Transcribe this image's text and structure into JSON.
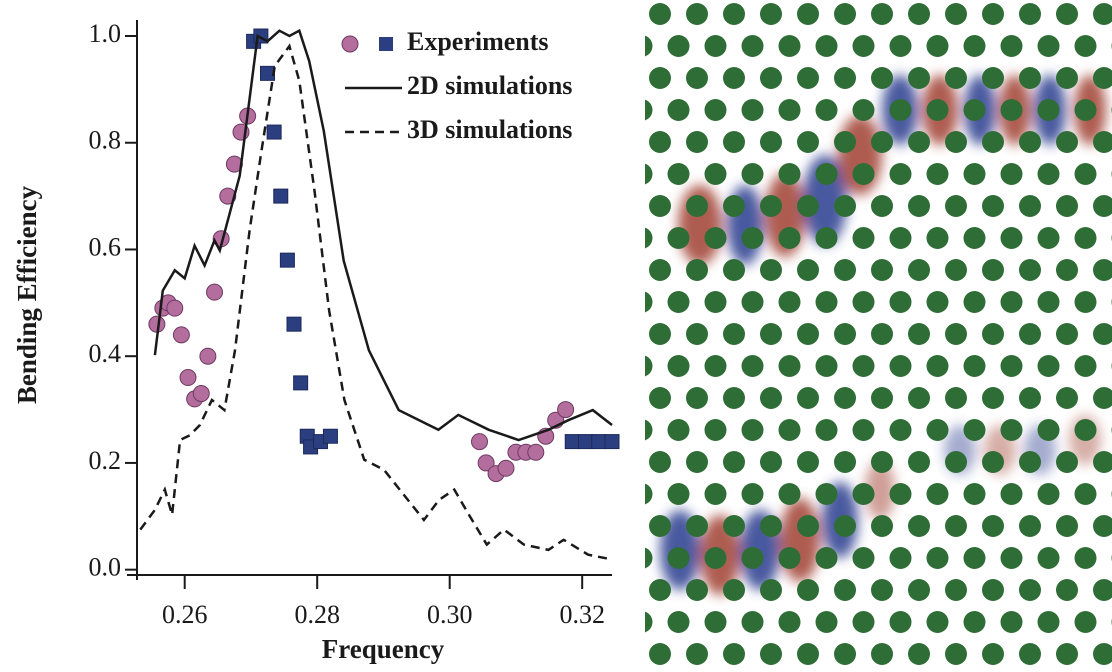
{
  "chart_data": {
    "type": "line",
    "x_label": "Frequency",
    "y_label": "Bending Efficiency",
    "xlim": [
      0.2528,
      0.3245
    ],
    "ylim": [
      -0.01,
      1.03
    ],
    "xticks": [
      0.26,
      0.28,
      {
        "value": 0.3,
        "label": "0.30"
      },
      0.32
    ],
    "yticks": [
      {
        "value": 0,
        "label": "0.0"
      },
      0.2,
      0.4,
      0.6,
      0.8,
      {
        "value": 1,
        "label": "1.0"
      }
    ],
    "series": [
      {
        "name": "Experiments",
        "color": "#b46e9e",
        "marker": "circle",
        "x": [
          0.2558,
          0.2567,
          0.2575,
          0.2585,
          0.2595,
          0.2605,
          0.2615,
          0.2625,
          0.2635,
          0.2645,
          0.2655,
          0.2665,
          0.2675,
          0.2685,
          0.2695,
          0.3045,
          0.3055,
          0.307,
          0.3085,
          0.31,
          0.3115,
          0.313,
          0.3145,
          0.316,
          0.3175
        ],
        "values": [
          0.46,
          0.49,
          0.5,
          0.49,
          0.44,
          0.36,
          0.32,
          0.33,
          0.4,
          0.52,
          0.62,
          0.7,
          0.76,
          0.82,
          0.85,
          0.24,
          0.2,
          0.18,
          0.19,
          0.22,
          0.22,
          0.22,
          0.25,
          0.28,
          0.3
        ]
      },
      {
        "color": "#2b3e7f",
        "marker": "square",
        "x": [
          0.2704,
          0.2715,
          0.2725,
          0.2735,
          0.2745,
          0.2755,
          0.2765,
          0.2775,
          0.2785,
          0.279,
          0.2805,
          0.282,
          0.3185,
          0.3205,
          0.3225,
          0.3245
        ],
        "values": [
          0.99,
          1.0,
          0.93,
          0.82,
          0.7,
          0.58,
          0.46,
          0.35,
          0.25,
          0.23,
          0.24,
          0.25,
          0.24,
          0.24,
          0.24,
          0.24
        ]
      },
      {
        "name": "2D simulations",
        "color": "#1a1a1a",
        "dash": "solid",
        "x": [
          0.2555,
          0.2567,
          0.2585,
          0.26,
          0.2615,
          0.263,
          0.2645,
          0.2653,
          0.2683,
          0.271,
          0.2725,
          0.2743,
          0.2758,
          0.2773,
          0.2788,
          0.281,
          0.284,
          0.2878,
          0.2923,
          0.2983,
          0.3013,
          0.3059,
          0.3104,
          0.3149,
          0.3179,
          0.3216,
          0.3245
        ],
        "values": [
          0.402,
          0.523,
          0.561,
          0.546,
          0.607,
          0.57,
          0.617,
          0.598,
          0.738,
          1.0,
          0.99,
          1.01,
          1.0,
          1.01,
          0.953,
          0.822,
          0.579,
          0.411,
          0.299,
          0.262,
          0.29,
          0.262,
          0.243,
          0.262,
          0.28,
          0.299,
          0.271
        ]
      },
      {
        "name": "3D simulations",
        "color": "#1a1a1a",
        "dash": "dashed",
        "x": [
          0.2533,
          0.2555,
          0.257,
          0.2581,
          0.2593,
          0.2608,
          0.2623,
          0.2641,
          0.266,
          0.2676,
          0.2698,
          0.2716,
          0.2736,
          0.2758,
          0.2773,
          0.2796,
          0.2818,
          0.2841,
          0.2871,
          0.2901,
          0.2931,
          0.2961,
          0.2984,
          0.3007,
          0.3029,
          0.3056,
          0.3082,
          0.3112,
          0.3149,
          0.3172,
          0.3209,
          0.3245
        ],
        "values": [
          0.075,
          0.112,
          0.15,
          0.103,
          0.243,
          0.252,
          0.271,
          0.318,
          0.299,
          0.411,
          0.636,
          0.785,
          0.944,
          0.981,
          0.916,
          0.71,
          0.486,
          0.318,
          0.206,
          0.187,
          0.14,
          0.093,
          0.131,
          0.15,
          0.103,
          0.047,
          0.075,
          0.047,
          0.037,
          0.056,
          0.028,
          0.019
        ]
      }
    ]
  }
}
